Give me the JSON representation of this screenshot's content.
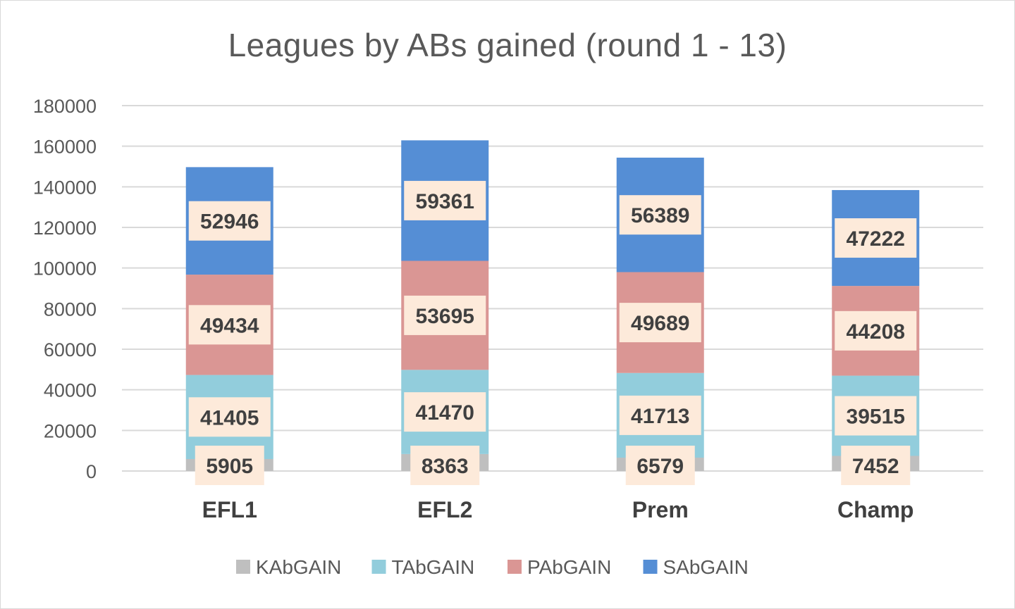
{
  "chart_data": {
    "type": "bar",
    "stacked": true,
    "title": "Leagues by ABs gained (round 1 - 13)",
    "categories": [
      "EFL1",
      "EFL2",
      "Prem",
      "Champ"
    ],
    "ylim": [
      0,
      180000
    ],
    "yticks": [
      "0",
      "20000",
      "40000",
      "60000",
      "80000",
      "100000",
      "120000",
      "140000",
      "160000",
      "180000"
    ],
    "grid": true,
    "legend_position": "bottom",
    "series": [
      {
        "name": "KAbGAIN",
        "color": "#bfbfbf",
        "values": [
          5905,
          8363,
          6579,
          7452
        ]
      },
      {
        "name": "TAbGAIN",
        "color": "#92cddc",
        "values": [
          41405,
          41470,
          41713,
          39515
        ]
      },
      {
        "name": "PAbGAIN",
        "color": "#da9694",
        "values": [
          49434,
          53695,
          49689,
          44208
        ]
      },
      {
        "name": "SAbGAIN",
        "color": "#558ed5",
        "values": [
          52946,
          59361,
          56389,
          47222
        ]
      }
    ],
    "data_label_bg": "#fdeada"
  }
}
